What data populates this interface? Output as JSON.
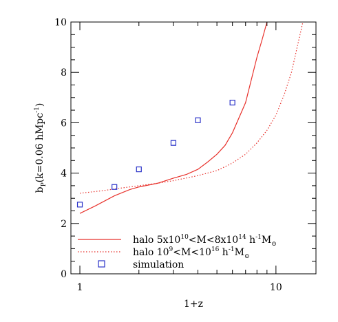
{
  "chart_data": {
    "type": "line",
    "xlabel": "1+z",
    "ylabel": {
      "prefix": "b",
      "sub": "P",
      "middle": "(k=0.06 hMpc",
      "sup": "-1",
      "suffix": ")"
    },
    "xscale": "log",
    "xlim": [
      0.9,
      16
    ],
    "ylim": [
      0,
      10
    ],
    "xticks": [
      {
        "value": 1,
        "label": "1"
      },
      {
        "value": 10,
        "label": "10"
      }
    ],
    "yticks": [
      {
        "value": 0,
        "label": "0"
      },
      {
        "value": 2,
        "label": "2"
      },
      {
        "value": 4,
        "label": "4"
      },
      {
        "value": 6,
        "label": "6"
      },
      {
        "value": 8,
        "label": "8"
      },
      {
        "value": 10,
        "label": "10"
      }
    ],
    "grid": false,
    "legend_position": "bottom-left",
    "series": [
      {
        "style": "solid",
        "color": "#e8322c",
        "legend": [
          {
            "t": "halo  5x10"
          },
          {
            "t": "10",
            "sup": true
          },
          {
            "t": "<M<8x10"
          },
          {
            "t": "14",
            "sup": true
          },
          {
            "t": " h"
          },
          {
            "t": "-1",
            "sup": true
          },
          {
            "t": "M"
          },
          {
            "t": "⊙",
            "sub": true
          }
        ],
        "x": [
          1.0,
          1.2,
          1.5,
          1.8,
          2.0,
          2.5,
          3.0,
          3.5,
          4.0,
          4.5,
          5.0,
          5.5,
          6.0,
          7.0,
          8.0,
          8.5,
          9.0,
          9.3
        ],
        "y": [
          2.4,
          2.7,
          3.1,
          3.35,
          3.45,
          3.6,
          3.8,
          3.95,
          4.15,
          4.45,
          4.75,
          5.1,
          5.6,
          6.8,
          8.6,
          9.3,
          10.0,
          10.3
        ]
      },
      {
        "style": "dotted",
        "color": "#e8322c",
        "legend": [
          {
            "t": "halo  10"
          },
          {
            "t": "9",
            "sup": true
          },
          {
            "t": "<M<10"
          },
          {
            "t": "16",
            "sup": true
          },
          {
            "t": " h"
          },
          {
            "t": "-1",
            "sup": true
          },
          {
            "t": "M"
          },
          {
            "t": "⊙",
            "sub": true
          }
        ],
        "x": [
          1.0,
          1.3,
          1.6,
          2.0,
          2.5,
          3.0,
          4.0,
          5.0,
          6.0,
          7.0,
          8.0,
          9.0,
          10.0,
          11.0,
          12.0,
          13.0,
          14.0
        ],
        "y": [
          3.2,
          3.3,
          3.4,
          3.5,
          3.6,
          3.7,
          3.9,
          4.1,
          4.4,
          4.75,
          5.2,
          5.7,
          6.3,
          7.1,
          8.0,
          9.2,
          10.3
        ]
      },
      {
        "style": "markers",
        "marker": "square",
        "color": "#2a32c8",
        "legend": [
          {
            "t": "simulation"
          }
        ],
        "x": [
          1.0,
          1.5,
          2.0,
          3.0,
          4.0,
          6.0
        ],
        "y": [
          2.75,
          3.45,
          4.15,
          5.2,
          6.1,
          6.8
        ]
      }
    ]
  }
}
